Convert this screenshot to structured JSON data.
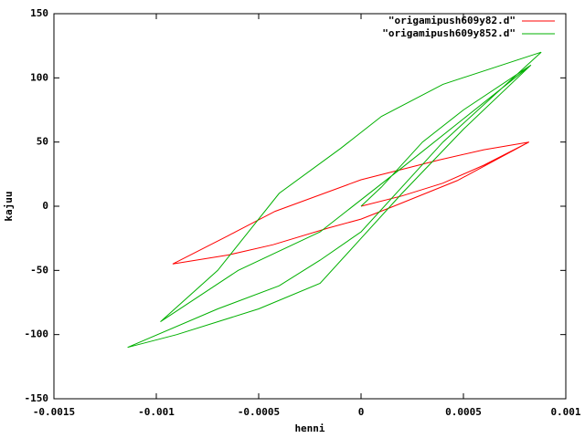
{
  "chart_data": {
    "type": "line",
    "x_label": "henni",
    "y_label": "kajuu",
    "xlim": [
      -0.0015,
      0.001
    ],
    "ylim": [
      -150,
      150
    ],
    "xticks": [
      -0.0015,
      -0.001,
      -0.0005,
      0,
      0.0005,
      0.001
    ],
    "yticks": [
      -150,
      -100,
      -50,
      0,
      50,
      100,
      150
    ],
    "legend": "top-right",
    "series": [
      {
        "name": "\"origamipush609y82.d\"",
        "color": "#ff0000",
        "x": [
          0,
          0.0002,
          0.0004,
          0.0006,
          0.00082,
          0.0006,
          0.00038,
          0,
          -0.00042,
          -0.00065,
          -0.00092,
          -0.00065,
          -0.00043,
          -0.00016,
          0,
          0.00016,
          0.00047,
          0.00082
        ],
        "values": [
          0,
          8,
          18,
          32,
          50,
          44,
          36,
          20.6,
          -4,
          -23,
          -45,
          -38,
          -30,
          -17,
          -10,
          0,
          20,
          50
        ]
      },
      {
        "name": "\"origamipush609y852.d\"",
        "color": "#00b000",
        "x": [
          0,
          0.0001,
          0.0003,
          0.0005,
          0.00083,
          0.0002,
          -0.0002,
          -0.0006,
          -0.00098,
          -0.0007,
          -0.0004,
          -0.0001,
          0.0001,
          0.0004,
          0.00088,
          0.0004,
          0,
          -0.0002,
          -0.0004,
          -0.0007,
          -0.00114,
          -0.0009,
          -0.0005,
          -0.0002,
          0,
          0.0002,
          0.0005,
          0.00083
        ],
        "values": [
          0,
          15,
          50,
          75,
          110,
          30,
          -20,
          -50,
          -90,
          -50,
          10,
          45,
          70,
          95,
          120,
          50,
          -20,
          -42,
          -62,
          -80,
          -110,
          -100,
          -80,
          -60,
          -25,
          10,
          60,
          110
        ]
      }
    ]
  }
}
